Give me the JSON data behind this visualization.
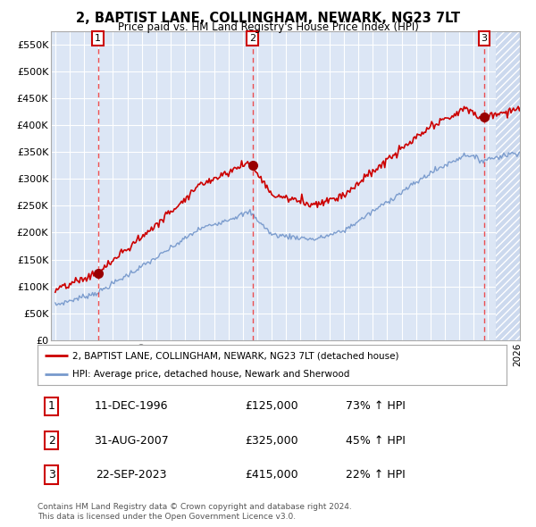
{
  "title": "2, BAPTIST LANE, COLLINGHAM, NEWARK, NG23 7LT",
  "subtitle": "Price paid vs. HM Land Registry's House Price Index (HPI)",
  "ylim": [
    0,
    575000
  ],
  "yticks": [
    0,
    50000,
    100000,
    150000,
    200000,
    250000,
    300000,
    350000,
    400000,
    450000,
    500000,
    550000
  ],
  "ytick_labels": [
    "£0",
    "£50K",
    "£100K",
    "£150K",
    "£200K",
    "£250K",
    "£300K",
    "£350K",
    "£400K",
    "£450K",
    "£500K",
    "£550K"
  ],
  "x_start_year": 1994,
  "x_end_year": 2026,
  "background_color": "#ffffff",
  "plot_bg_color": "#dce6f5",
  "hatch_bg_color": "#ccd9ee",
  "grid_color": "#ffffff",
  "sale_line_color": "#cc0000",
  "hpi_line_color": "#7799cc",
  "sale_dot_color": "#990000",
  "dashed_line_color": "#ee3333",
  "sale_dates_num": [
    1996.95,
    2007.67,
    2023.73
  ],
  "sale_prices": [
    125000,
    325000,
    415000
  ],
  "sale_labels": [
    "1",
    "2",
    "3"
  ],
  "legend_sale_label": "2, BAPTIST LANE, COLLINGHAM, NEWARK, NG23 7LT (detached house)",
  "legend_hpi_label": "HPI: Average price, detached house, Newark and Sherwood",
  "row_dates": [
    "11-DEC-1996",
    "31-AUG-2007",
    "22-SEP-2023"
  ],
  "row_prices": [
    "£125,000",
    "£325,000",
    "£415,000"
  ],
  "row_hpi": [
    "73% ↑ HPI",
    "45% ↑ HPI",
    "22% ↑ HPI"
  ],
  "footer_line1": "Contains HM Land Registry data © Crown copyright and database right 2024.",
  "footer_line2": "This data is licensed under the Open Government Licence v3.0."
}
